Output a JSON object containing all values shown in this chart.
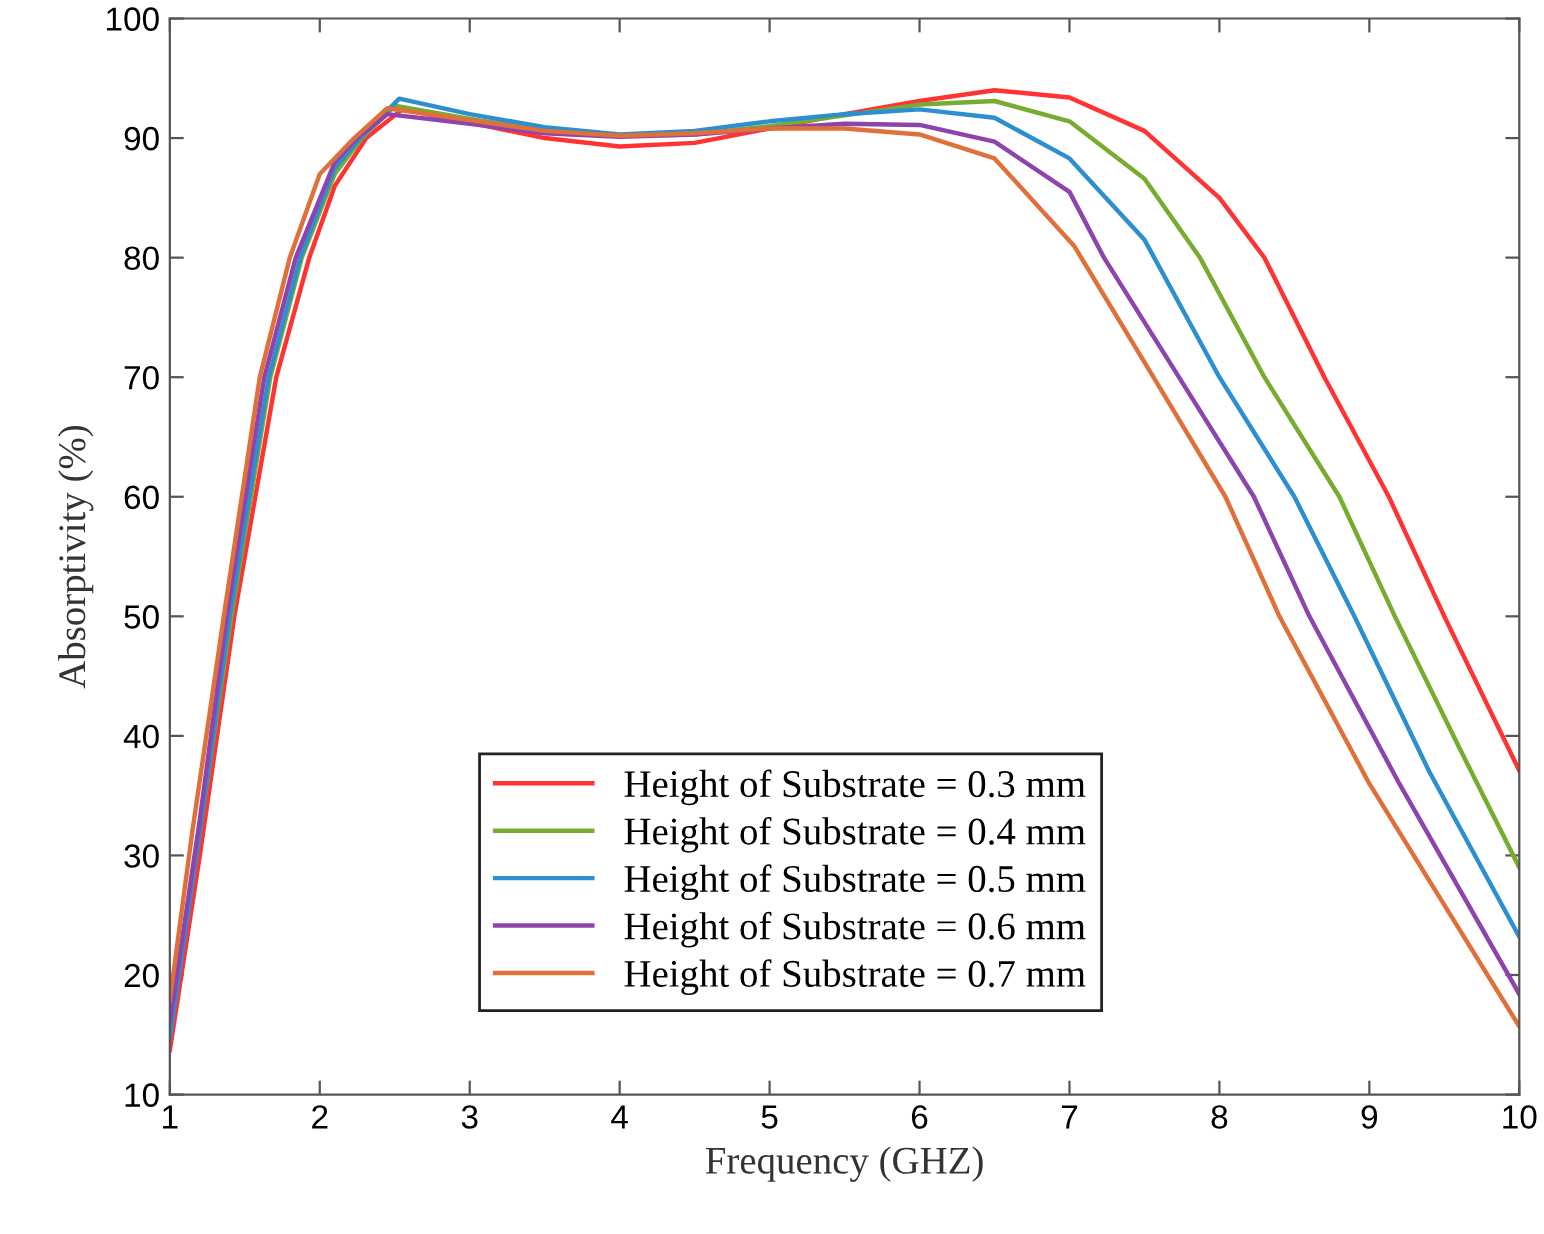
{
  "chart_data": {
    "type": "line",
    "xlabel": "Frequency (GHZ)",
    "ylabel": "Absorptivity (%)",
    "xlim": [
      1,
      10
    ],
    "xticks": [
      1,
      2,
      3,
      4,
      5,
      6,
      7,
      8,
      9,
      10
    ],
    "ylim": [
      10,
      100
    ],
    "yticks": [
      10,
      20,
      30,
      40,
      50,
      60,
      70,
      80,
      90,
      100
    ],
    "grid": false,
    "legend": "bottom",
    "marker": "none",
    "line_style": "solid",
    "series": [
      {
        "name": "Height of Substrate = 0.3 mm",
        "color": "#ff3333",
        "x": [
          1,
          1.2,
          1.43,
          1.71,
          1.93,
          2.1,
          2.31,
          2.55,
          3,
          3.5,
          4,
          4.5,
          5,
          5.5,
          6,
          6.5,
          7,
          7.5,
          8,
          8.3,
          8.7,
          9.13,
          9.5,
          10
        ],
        "values": [
          13.7,
          30,
          50,
          70,
          80,
          86,
          90,
          92.4,
          91.3,
          90,
          89.3,
          89.6,
          90.8,
          92,
          93.1,
          94,
          93.4,
          90.6,
          85,
          80,
          70,
          60,
          50,
          37.1
        ]
      },
      {
        "name": "Height of Substrate = 0.4 mm",
        "color": "#77ac30",
        "x": [
          1,
          1.2,
          1.41,
          1.67,
          1.88,
          2.1,
          2.28,
          2.5,
          3,
          3.5,
          4,
          4.5,
          5,
          5.5,
          6,
          6.5,
          7,
          7.5,
          7.87,
          8.3,
          8.8,
          9.17,
          9.6,
          10
        ],
        "values": [
          15.5,
          32,
          50,
          70,
          80,
          87,
          90,
          92.7,
          91.6,
          90.6,
          90.2,
          90.3,
          91,
          91.9,
          92.8,
          93.1,
          91.4,
          86.6,
          80,
          70,
          60,
          50,
          39,
          29
        ]
      },
      {
        "name": "Height of Substrate = 0.5 mm",
        "color": "#2e8fd0",
        "x": [
          1,
          1.2,
          1.4,
          1.66,
          1.87,
          2.1,
          2.27,
          2.53,
          3,
          3.5,
          4,
          4.5,
          5,
          5.5,
          6,
          6.5,
          7,
          7.5,
          8,
          8.5,
          8.9,
          9.4,
          10
        ],
        "values": [
          14.8,
          32,
          50,
          70,
          80,
          87.5,
          90,
          93.3,
          92,
          90.9,
          90.3,
          90.6,
          91.4,
          92,
          92.4,
          91.7,
          88.3,
          81.5,
          70,
          60,
          50,
          37,
          23.2
        ]
      },
      {
        "name": "Height of Substrate = 0.6 mm",
        "color": "#8e44ad",
        "x": [
          1,
          1.2,
          1.38,
          1.63,
          1.84,
          2.1,
          2.25,
          2.45,
          3,
          3.5,
          4,
          4.5,
          5,
          5.5,
          6,
          6.5,
          7,
          7.23,
          7.73,
          8.23,
          8.6,
          9.2,
          10
        ],
        "values": [
          16,
          33,
          50,
          70,
          80,
          88,
          90,
          92,
          91.2,
          90.4,
          90.1,
          90.3,
          90.8,
          91.2,
          91.1,
          89.7,
          85.5,
          80,
          70,
          60,
          50,
          36,
          18.4
        ]
      },
      {
        "name": "Height of Substrate = 0.7 mm",
        "color": "#e0703a",
        "x": [
          1,
          1.15,
          1.36,
          1.6,
          1.8,
          2,
          2.23,
          2.45,
          3,
          3.5,
          4,
          4.5,
          5,
          5.5,
          6,
          6.5,
          7.03,
          7.56,
          8.04,
          8.4,
          9,
          10
        ],
        "values": [
          17.9,
          32,
          50,
          70,
          80,
          87,
          90,
          92.5,
          91.5,
          90.6,
          90.2,
          90.4,
          90.8,
          90.8,
          90.3,
          88.3,
          81,
          70,
          60,
          50,
          36,
          15.7
        ]
      }
    ]
  }
}
